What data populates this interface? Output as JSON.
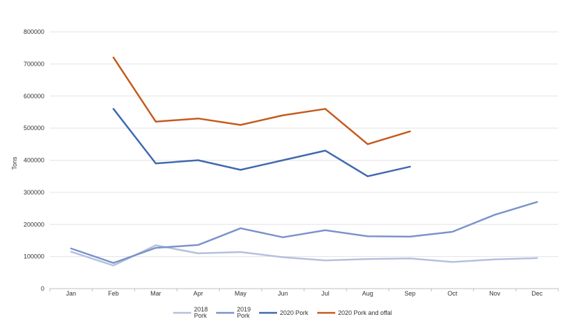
{
  "chart_data": {
    "type": "line",
    "title": "",
    "xlabel": "",
    "ylabel": "Tons",
    "ylim": [
      0,
      800000
    ],
    "yticks": [
      0,
      100000,
      200000,
      300000,
      400000,
      500000,
      600000,
      700000,
      800000
    ],
    "grid": true,
    "legend_position": "bottom",
    "categories": [
      "Jan",
      "Feb",
      "Mar",
      "Apr",
      "May",
      "Jun",
      "Jul",
      "Aug",
      "Sep",
      "Oct",
      "Nov",
      "Dec"
    ],
    "series": [
      {
        "name": "2018 Pork",
        "legend_lines": [
          "2018",
          "Pork"
        ],
        "color": "#b4c0de",
        "values": [
          115000,
          72000,
          135000,
          110000,
          114000,
          98000,
          88000,
          92000,
          94000,
          83000,
          91000,
          95000
        ]
      },
      {
        "name": "2019 Pork",
        "legend_lines": [
          "2019",
          "Pork"
        ],
        "color": "#7b93c9",
        "values": [
          125000,
          80000,
          127000,
          136000,
          188000,
          160000,
          182000,
          163000,
          162000,
          177000,
          230000,
          270000
        ]
      },
      {
        "name": "2020 Pork",
        "legend_lines": [
          "2020 Pork"
        ],
        "color": "#4169af",
        "values": [
          null,
          560000,
          390000,
          400000,
          370000,
          400000,
          430000,
          350000,
          380000,
          null,
          null,
          null
        ]
      },
      {
        "name": "2020 Pork and offal",
        "legend_lines": [
          "2020 Pork and offal"
        ],
        "color": "#c55a1b",
        "values": [
          null,
          720000,
          520000,
          530000,
          510000,
          540000,
          560000,
          450000,
          490000,
          null,
          null,
          null
        ]
      }
    ]
  }
}
